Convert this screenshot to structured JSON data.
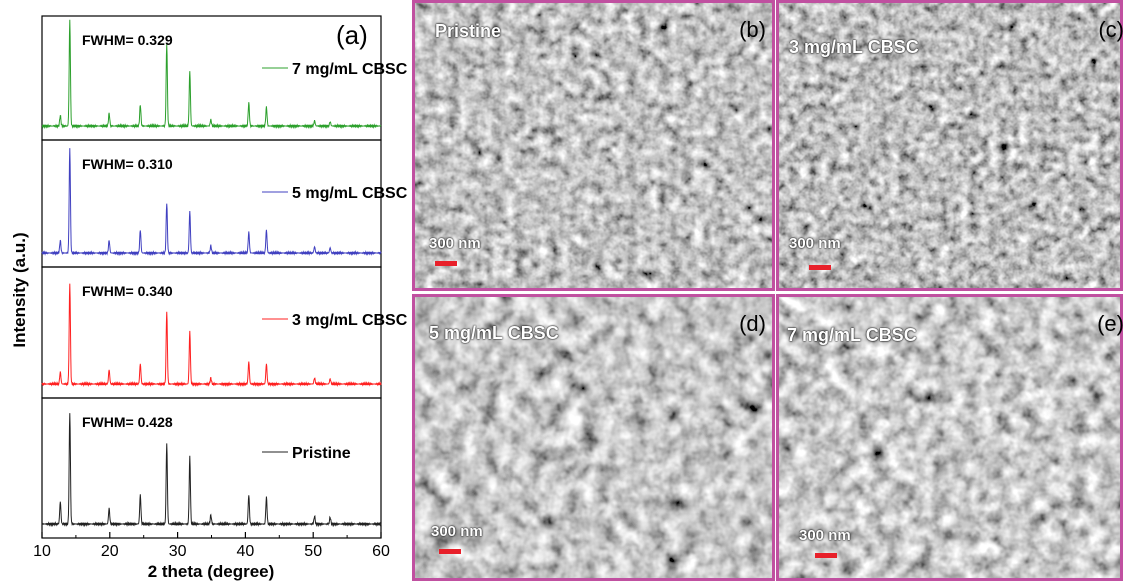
{
  "figure": {
    "panel_a_label": "(a)",
    "ylabel": "Intensity (a.u.)",
    "xlabel": "2 theta (degree)"
  },
  "chart_data": {
    "type": "line",
    "xlabel": "2 theta (degree)",
    "ylabel": "Intensity (a.u.)",
    "xlim": [
      10,
      60
    ],
    "xticks": [
      "10",
      "20",
      "30",
      "40",
      "50",
      "60"
    ],
    "peaks_2theta": [
      12.7,
      14.1,
      19.9,
      24.5,
      28.4,
      31.8,
      34.9,
      40.5,
      43.1,
      50.2,
      52.5
    ],
    "series": [
      {
        "name": "7 mg/mL CBSC",
        "fwhm": "FWHM= 0.329",
        "color": "#2ca02c",
        "peak_heights": [
          0.1,
          1.0,
          0.12,
          0.2,
          0.78,
          0.52,
          0.06,
          0.22,
          0.18,
          0.05,
          0.04
        ]
      },
      {
        "name": "5 mg/mL CBSC",
        "fwhm": "FWHM= 0.310",
        "color": "#4040c0",
        "peak_heights": [
          0.12,
          1.0,
          0.12,
          0.22,
          0.48,
          0.4,
          0.07,
          0.2,
          0.22,
          0.06,
          0.05
        ]
      },
      {
        "name": "3 mg/mL CBSC",
        "fwhm": "FWHM= 0.340",
        "color": "#ff2020",
        "peak_heights": [
          0.12,
          1.0,
          0.14,
          0.2,
          0.72,
          0.52,
          0.06,
          0.22,
          0.2,
          0.06,
          0.05
        ]
      },
      {
        "name": "Pristine",
        "fwhm": "FWHM= 0.428",
        "color": "#222222",
        "peak_heights": [
          0.2,
          1.0,
          0.14,
          0.26,
          0.72,
          0.6,
          0.08,
          0.26,
          0.24,
          0.07,
          0.06
        ]
      }
    ]
  },
  "sem_panels": [
    {
      "title": "Pristine",
      "letter": "(b)",
      "scale": "300 nm"
    },
    {
      "title": "3 mg/mL CBSC",
      "letter": "(c)",
      "scale": "300 nm"
    },
    {
      "title": "5 mg/mL CBSC",
      "letter": "(d)",
      "scale": "300 nm"
    },
    {
      "title": "7 mg/mL CBSC",
      "letter": "(e)",
      "scale": "300 nm"
    }
  ]
}
